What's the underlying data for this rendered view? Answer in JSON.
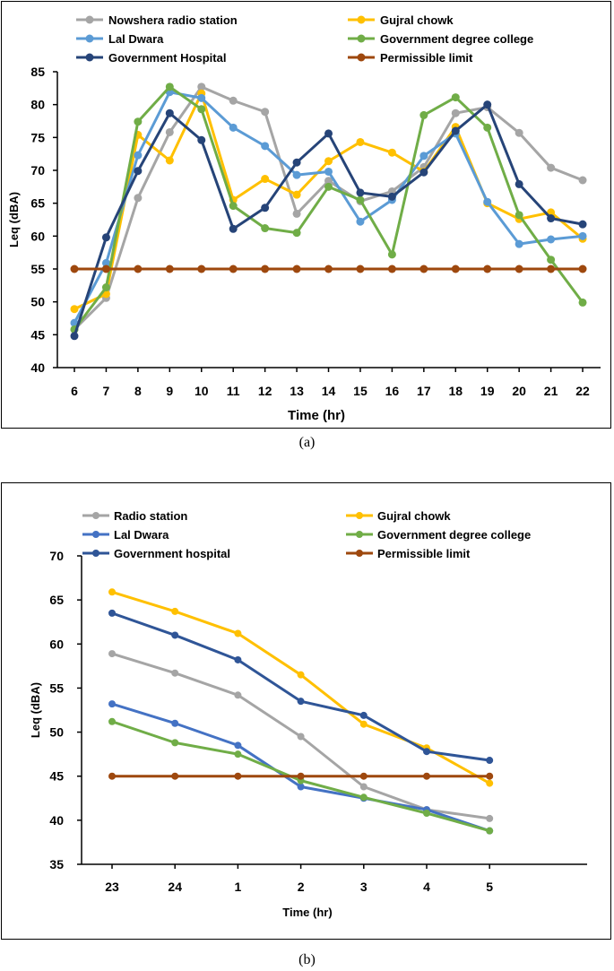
{
  "chart_data": [
    {
      "type": "line",
      "panel_label": "(a)",
      "xlabel": "Time (hr)",
      "ylabel": "Leq (dBA)",
      "ylim": [
        40,
        85
      ],
      "yticks": [
        40,
        45,
        50,
        55,
        60,
        65,
        70,
        75,
        80,
        85
      ],
      "categories": [
        "6",
        "7",
        "8",
        "9",
        "10",
        "11",
        "12",
        "13",
        "14",
        "15",
        "16",
        "17",
        "18",
        "19",
        "20",
        "21",
        "22"
      ],
      "legend_position": "top",
      "series": [
        {
          "name": "Nowshera radio station",
          "color": "#a5a5a5",
          "values": [
            45.8,
            50.6,
            65.8,
            75.8,
            82.7,
            80.6,
            78.9,
            63.4,
            68.4,
            65.3,
            66.8,
            70.5,
            78.7,
            79.6,
            75.7,
            70.4,
            68.5
          ]
        },
        {
          "name": "Gujral chowk",
          "color": "#ffc000",
          "values": [
            48.9,
            51.2,
            75.4,
            71.5,
            81.7,
            65.5,
            68.7,
            66.3,
            71.4,
            74.3,
            72.7,
            69.8,
            76.6,
            65.0,
            62.6,
            63.6,
            59.6
          ]
        },
        {
          "name": "Lal Dwara",
          "color": "#5b9bd5",
          "values": [
            46.8,
            55.9,
            72.3,
            81.9,
            81.0,
            76.5,
            73.7,
            69.3,
            69.8,
            62.2,
            65.5,
            72.2,
            75.6,
            65.2,
            58.8,
            59.5,
            60.0
          ]
        },
        {
          "name": "Government degree college",
          "color": "#70ad47",
          "values": [
            45.8,
            52.2,
            77.4,
            82.7,
            79.3,
            64.6,
            61.2,
            60.5,
            67.5,
            65.5,
            57.2,
            78.4,
            81.1,
            76.5,
            63.2,
            56.4,
            49.9
          ]
        },
        {
          "name": "Government Hospital",
          "color": "#264478",
          "values": [
            44.8,
            59.8,
            69.9,
            78.7,
            74.6,
            61.1,
            64.3,
            71.2,
            75.6,
            66.6,
            66.0,
            69.7,
            76.0,
            80.0,
            67.9,
            62.7,
            61.8
          ]
        },
        {
          "name": "Permissible limit",
          "color": "#9e480e",
          "values": [
            55,
            55,
            55,
            55,
            55,
            55,
            55,
            55,
            55,
            55,
            55,
            55,
            55,
            55,
            55,
            55,
            55
          ]
        }
      ]
    },
    {
      "type": "line",
      "panel_label": "(b)",
      "xlabel": "Time (hr)",
      "ylabel": "Leq (dBA)",
      "ylim": [
        35,
        70
      ],
      "yticks": [
        35,
        40,
        45,
        50,
        55,
        60,
        65,
        70
      ],
      "categories": [
        "23",
        "24",
        "1",
        "2",
        "3",
        "4",
        "5"
      ],
      "legend_position": "top",
      "series": [
        {
          "name": "Radio station",
          "color": "#a5a5a5",
          "values": [
            58.9,
            56.7,
            54.2,
            49.5,
            43.8,
            41.2,
            40.2
          ]
        },
        {
          "name": "Gujral chowk",
          "color": "#ffc000",
          "values": [
            65.9,
            63.7,
            61.2,
            56.5,
            50.9,
            48.2,
            44.2
          ]
        },
        {
          "name": "Lal Dwara",
          "color": "#4472c4",
          "values": [
            53.2,
            51.0,
            48.5,
            43.8,
            42.5,
            41.2,
            38.8
          ]
        },
        {
          "name": "Government degree college",
          "color": "#70ad47",
          "values": [
            51.2,
            48.8,
            47.5,
            44.5,
            42.6,
            40.8,
            38.8
          ]
        },
        {
          "name": "Government hospital",
          "color": "#2f5597",
          "values": [
            63.5,
            61.0,
            58.2,
            53.5,
            51.9,
            47.8,
            46.8
          ]
        },
        {
          "name": "Permissible limit",
          "color": "#9e480e",
          "values": [
            45,
            45,
            45,
            45,
            45,
            45,
            45
          ]
        }
      ]
    }
  ]
}
